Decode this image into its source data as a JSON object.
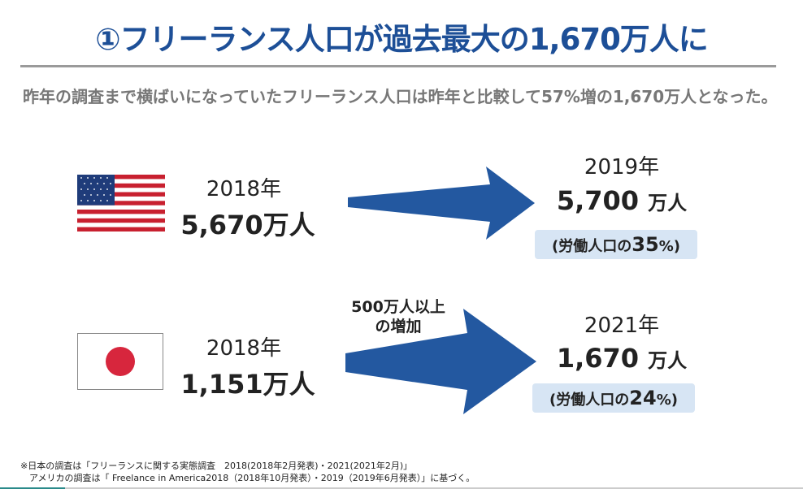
{
  "title": "①フリーランス人口が過去最大の1,670万人に",
  "lead": "昨年の調査まで横ばいになっていたフリーランス人口は昨年と比較して57%増の1,670万人となった。",
  "usa": {
    "flag": "us-flag-icon",
    "from_year": "2018年",
    "from_value": "5,670万人",
    "to_year": "2019年",
    "to_value": "5,700",
    "to_unit": "万人",
    "share_prefix": "(労働人口の",
    "share_value": "35",
    "share_suffix": "%)"
  },
  "japan": {
    "flag": "japan-flag-icon",
    "from_year": "2018年",
    "from_value": "1,151万人",
    "to_year": "2021年",
    "to_value": "1,670",
    "to_unit": "万人",
    "share_prefix": "(労働人口の",
    "share_value": "24",
    "share_suffix": "%)",
    "increase_line1": "500万人以上",
    "increase_line2": "の増加"
  },
  "notes": [
    "※日本の調査は「フリーランスに関する実態調査　2018(2018年2月発表)・2021(2021年2月)」",
    "　アメリカの調査は「 Freelance in America2018（2018年10月発表）・2019（2019年6月発表）」に基づく。"
  ],
  "colors": {
    "title": "#1d4f97",
    "arrow": "#2358a0",
    "pill": "#d7e5f4",
    "flag_red": "#d7263d"
  }
}
